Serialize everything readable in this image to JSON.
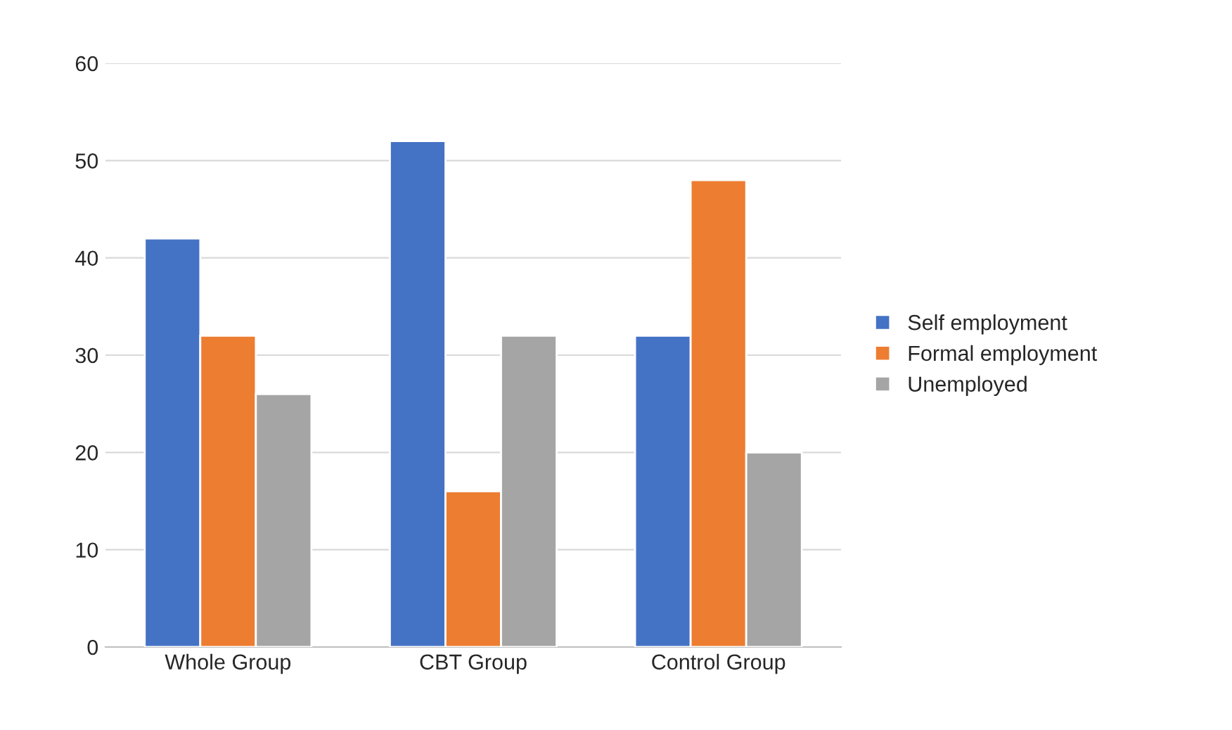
{
  "chart_data": {
    "type": "bar",
    "categories": [
      "Whole Group",
      "CBT Group",
      "Control Group"
    ],
    "series": [
      {
        "name": "Self employment",
        "color": "#4472c4",
        "values": [
          42,
          52,
          32
        ]
      },
      {
        "name": "Formal employment",
        "color": "#ed7d31",
        "values": [
          32,
          16,
          48
        ]
      },
      {
        "name": "Unemployed",
        "color": "#a5a5a5",
        "values": [
          26,
          32,
          20
        ]
      }
    ],
    "ylim": [
      0,
      60
    ],
    "yticks": [
      0,
      10,
      20,
      30,
      40,
      50,
      60
    ],
    "grid": "y",
    "legend": "right"
  }
}
